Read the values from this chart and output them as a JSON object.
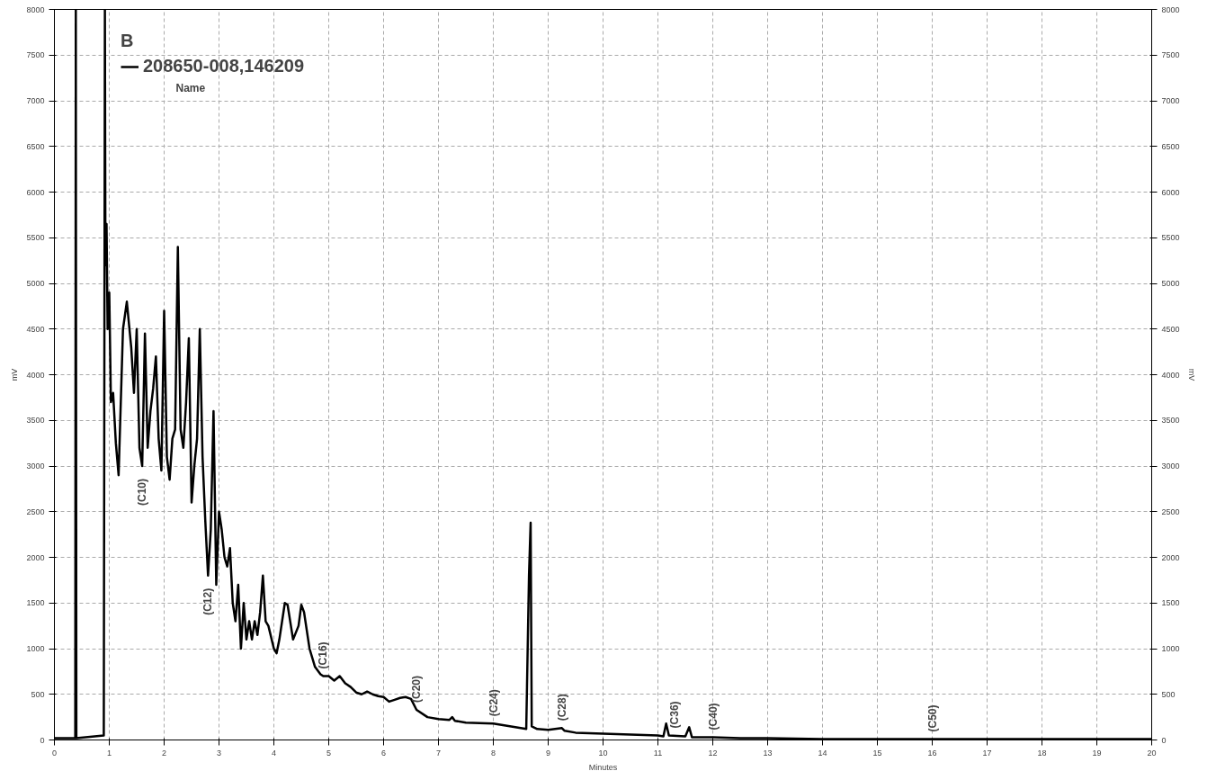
{
  "chart_data": {
    "type": "line",
    "xlabel": "Minutes",
    "ylabel": "mV",
    "y2label": "mV",
    "legend_title": "B",
    "x": [
      0,
      0.38,
      0.39,
      0.4,
      0.9,
      0.92,
      0.93,
      0.95,
      0.97,
      1.0,
      1.03,
      1.07,
      1.12,
      1.17,
      1.25,
      1.32,
      1.4,
      1.45,
      1.5,
      1.55,
      1.6,
      1.65,
      1.7,
      1.75,
      1.8,
      1.85,
      1.9,
      1.95,
      2.0,
      2.05,
      2.1,
      2.15,
      2.2,
      2.25,
      2.3,
      2.35,
      2.4,
      2.45,
      2.5,
      2.55,
      2.6,
      2.65,
      2.7,
      2.75,
      2.8,
      2.85,
      2.9,
      2.95,
      3.0,
      3.05,
      3.1,
      3.15,
      3.2,
      3.25,
      3.3,
      3.35,
      3.4,
      3.45,
      3.5,
      3.55,
      3.6,
      3.65,
      3.7,
      3.75,
      3.8,
      3.85,
      3.9,
      4.0,
      4.05,
      4.1,
      4.2,
      4.25,
      4.35,
      4.45,
      4.5,
      4.55,
      4.65,
      4.75,
      4.85,
      4.9,
      5.0,
      5.1,
      5.2,
      5.3,
      5.4,
      5.5,
      5.6,
      5.7,
      5.8,
      5.9,
      6.0,
      6.1,
      6.2,
      6.3,
      6.4,
      6.5,
      6.6,
      6.8,
      7.0,
      7.2,
      7.25,
      7.3,
      7.5,
      8.0,
      8.5,
      8.6,
      8.65,
      8.68,
      8.7,
      8.8,
      9.0,
      9.25,
      9.3,
      9.5,
      10.0,
      10.5,
      11.0,
      11.1,
      11.15,
      11.2,
      11.5,
      11.57,
      11.62,
      12.0,
      12.5,
      13,
      14,
      16,
      18,
      20
    ],
    "series": [
      {
        "name": "208650-008,146209",
        "color": "#000000",
        "values": [
          20,
          20,
          8000,
          20,
          50,
          8000,
          5200,
          5650,
          4500,
          4900,
          3700,
          3800,
          3250,
          2900,
          4500,
          4800,
          4300,
          3800,
          4500,
          3200,
          3000,
          4450,
          3200,
          3600,
          3850,
          4200,
          3300,
          2950,
          4700,
          3100,
          2850,
          3300,
          3400,
          5400,
          3400,
          3200,
          3700,
          4400,
          2600,
          3000,
          3300,
          4500,
          3100,
          2400,
          1800,
          2300,
          3600,
          1700,
          2500,
          2300,
          2000,
          1900,
          2100,
          1500,
          1300,
          1700,
          1000,
          1500,
          1100,
          1300,
          1100,
          1300,
          1150,
          1400,
          1800,
          1300,
          1250,
          1000,
          950,
          1100,
          1500,
          1480,
          1100,
          1250,
          1480,
          1400,
          1000,
          800,
          720,
          700,
          700,
          650,
          700,
          620,
          580,
          520,
          500,
          530,
          500,
          480,
          470,
          420,
          440,
          460,
          470,
          450,
          330,
          250,
          230,
          220,
          250,
          210,
          190,
          180,
          130,
          120,
          1800,
          2380,
          150,
          120,
          110,
          130,
          100,
          80,
          70,
          60,
          50,
          40,
          180,
          50,
          40,
          140,
          30,
          30,
          20,
          20,
          10,
          10,
          10,
          10
        ]
      }
    ],
    "xlim": [
      0,
      20
    ],
    "xticks": [
      0,
      1,
      2,
      3,
      4,
      5,
      6,
      7,
      8,
      9,
      10,
      11,
      12,
      13,
      14,
      15,
      16,
      17,
      18,
      19,
      20
    ],
    "ylim": [
      0,
      8000
    ],
    "yticks": [
      0,
      500,
      1000,
      1500,
      2000,
      2500,
      3000,
      3500,
      4000,
      4500,
      5000,
      5500,
      6000,
      6500,
      7000,
      7500,
      8000
    ],
    "y2lim": [
      0,
      8000
    ],
    "y2ticks": [
      0,
      500,
      1000,
      1500,
      2000,
      2500,
      3000,
      3500,
      4000,
      4500,
      5000,
      5500,
      6000,
      6500,
      7000,
      7500,
      8000
    ],
    "grid": true,
    "legend": "top left",
    "line_style": "solid",
    "marker": "none",
    "annotations": [
      "Name",
      {
        "text": "(C10)",
        "x": 1.6,
        "y": 3000
      },
      {
        "text": "(C12)",
        "x": 2.8,
        "y": 1800
      },
      {
        "text": "(C16)",
        "x": 4.9,
        "y": 700
      },
      {
        "text": "(C20)",
        "x": 6.6,
        "y": 330
      },
      {
        "text": "(C24)",
        "x": 8.0,
        "y": 180
      },
      {
        "text": "(C28)",
        "x": 9.25,
        "y": 130
      },
      {
        "text": "(C36)",
        "x": 11.3,
        "y": 50
      },
      {
        "text": "(C40)",
        "x": 12.0,
        "y": 30
      },
      {
        "text": "(C50)",
        "x": 16,
        "y": 10
      }
    ]
  }
}
